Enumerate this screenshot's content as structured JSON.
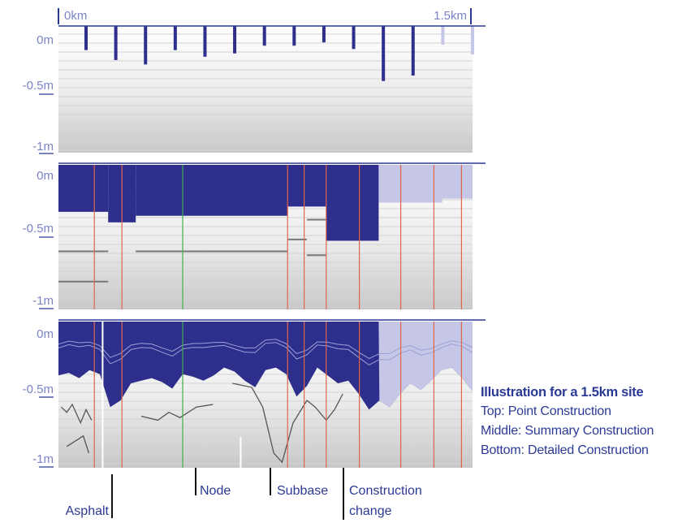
{
  "scale": {
    "start": "0km",
    "end": "1.5km"
  },
  "depth_labels": [
    "0m",
    "-0.5m",
    "-1m"
  ],
  "panels": [
    {
      "id": "top",
      "name": "Point Construction"
    },
    {
      "id": "middle",
      "name": "Summary Construction"
    },
    {
      "id": "bottom",
      "name": "Detailed Construction"
    }
  ],
  "callouts": {
    "asphalt": "Asphalt",
    "node": "Node",
    "subbase": "Subbase",
    "construction_change_1": "Construction",
    "construction_change_2": "change"
  },
  "caption": {
    "title": "Illustration for a 1.5km site",
    "lines": [
      "Top: Point Construction",
      "Middle: Summary Construction",
      "Bottom: Detailed Construction"
    ]
  },
  "colors": {
    "asphalt": "#2e2e8c",
    "asphalt_pale": "#c6c6e6",
    "axis": "#2b3a94",
    "construction_change": "#e0664a",
    "node": "#3cb24a",
    "text": "#2b3a94"
  },
  "chart_data": [
    {
      "type": "bar",
      "title": "Point Construction",
      "x_range_km": [
        0,
        1.5
      ],
      "ylim_m": [
        -1,
        0
      ],
      "point_depths_m": [
        -0.13,
        -0.22,
        -0.26,
        -0.13,
        -0.19,
        -0.16,
        -0.09,
        -0.09,
        -0.06,
        -0.12,
        -0.41,
        -0.36,
        -0.08,
        -0.17
      ],
      "pale_points": [
        12,
        13
      ]
    },
    {
      "type": "area",
      "title": "Summary Construction",
      "x_range_km": [
        0,
        1.5
      ],
      "ylim_m": [
        -1,
        0
      ],
      "asphalt_segments": [
        {
          "x": [
            0,
            0.18
          ],
          "depth_m": -0.32
        },
        {
          "x": [
            0.18,
            0.28
          ],
          "depth_m": -0.4
        },
        {
          "x": [
            0.28,
            0.83
          ],
          "depth_m": -0.35
        },
        {
          "x": [
            0.83,
            0.9
          ],
          "depth_m": -0.28
        },
        {
          "x": [
            0.9,
            0.97
          ],
          "depth_m": -0.28
        },
        {
          "x": [
            0.97,
            1.16
          ],
          "depth_m": -0.54
        },
        {
          "x": [
            1.16,
            1.39
          ],
          "depth_m": -0.25,
          "pale": [
            1.16,
            1.39
          ]
        },
        {
          "x": [
            1.39,
            1.5
          ],
          "depth_m": -0.22,
          "pale": [
            1.39,
            1.5
          ]
        }
      ],
      "subbase_layers_m": [
        {
          "x": [
            0,
            0.18
          ],
          "depth_m": -0.85
        },
        {
          "x": [
            0,
            0.18
          ],
          "depth_m": -0.62
        },
        {
          "x": [
            0.28,
            0.83
          ],
          "depth_m": -0.62
        },
        {
          "x": [
            0.83,
            0.9
          ],
          "depth_m": -0.53
        },
        {
          "x": [
            0.9,
            0.97
          ],
          "depth_m": -0.38
        },
        {
          "x": [
            0.9,
            0.97
          ],
          "depth_m": -0.65
        }
      ],
      "construction_changes_km": [
        0.13,
        0.23,
        0.83,
        0.89,
        0.97,
        1.09,
        1.24,
        1.36,
        1.46
      ],
      "node_km": [
        0.45
      ]
    },
    {
      "type": "line",
      "title": "Detailed Construction",
      "x_range_km": [
        0,
        1.5
      ],
      "ylim_m": [
        -1,
        0
      ],
      "asphalt_profile_m": [
        -0.36,
        -0.34,
        -0.38,
        -0.32,
        -0.35,
        -0.6,
        -0.55,
        -0.42,
        -0.4,
        -0.38,
        -0.41,
        -0.46,
        -0.35,
        -0.37,
        -0.4,
        -0.36,
        -0.3,
        -0.33,
        -0.4,
        -0.45,
        -0.32,
        -0.3,
        -0.35,
        -0.52,
        -0.44,
        -0.3,
        -0.36,
        -0.42,
        -0.4,
        -0.5,
        -0.62,
        -0.55,
        -0.6,
        -0.5,
        -0.42,
        -0.47,
        -0.4,
        -0.32,
        -0.3,
        -0.38,
        -0.48
      ],
      "construction_changes_km": [
        0.13,
        0.23,
        0.83,
        0.89,
        0.97,
        1.09,
        1.24,
        1.36,
        1.46
      ],
      "callout_positions_km": {
        "asphalt": 0.16,
        "node": 0.45,
        "subbase": 0.66,
        "construction_change": 0.93
      }
    }
  ]
}
